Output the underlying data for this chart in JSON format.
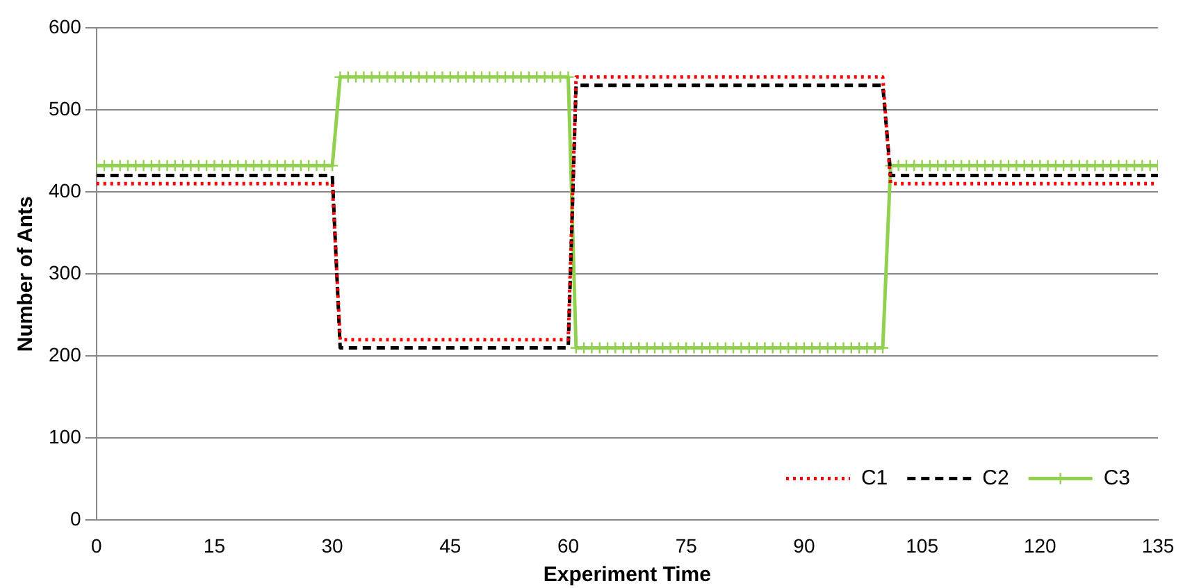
{
  "chart_data": {
    "type": "line",
    "xlabel": "Experiment Time",
    "ylabel": "Number of Ants",
    "x": [
      0,
      1,
      2,
      3,
      4,
      5,
      6,
      7,
      8,
      9,
      10,
      11,
      12,
      13,
      14,
      15,
      16,
      17,
      18,
      19,
      20,
      21,
      22,
      23,
      24,
      25,
      26,
      27,
      28,
      29,
      30,
      31,
      32,
      33,
      34,
      35,
      36,
      37,
      38,
      39,
      40,
      41,
      42,
      43,
      44,
      45,
      46,
      47,
      48,
      49,
      50,
      51,
      52,
      53,
      54,
      55,
      56,
      57,
      58,
      59,
      60,
      61,
      62,
      63,
      64,
      65,
      66,
      67,
      68,
      69,
      70,
      71,
      72,
      73,
      74,
      75,
      76,
      77,
      78,
      79,
      80,
      81,
      82,
      83,
      84,
      85,
      86,
      87,
      88,
      89,
      90,
      91,
      92,
      93,
      94,
      95,
      96,
      97,
      98,
      99,
      100,
      101,
      102,
      103,
      104,
      105,
      106,
      107,
      108,
      109,
      110,
      111,
      112,
      113,
      114,
      115,
      116,
      117,
      118,
      119,
      120,
      121,
      122,
      123,
      124,
      125,
      126,
      127,
      128,
      129,
      130,
      131,
      132,
      133,
      134,
      135
    ],
    "series": [
      {
        "name": "C1",
        "color": "#ff0000",
        "line_style": "dotted",
        "marker": "none",
        "values": [
          410,
          410,
          410,
          410,
          410,
          410,
          410,
          410,
          410,
          410,
          410,
          410,
          410,
          410,
          410,
          410,
          410,
          410,
          410,
          410,
          410,
          410,
          410,
          410,
          410,
          410,
          410,
          410,
          410,
          410,
          410,
          220,
          220,
          220,
          220,
          220,
          220,
          220,
          220,
          220,
          220,
          220,
          220,
          220,
          220,
          220,
          220,
          220,
          220,
          220,
          220,
          220,
          220,
          220,
          220,
          220,
          220,
          220,
          220,
          220,
          220,
          540,
          540,
          540,
          540,
          540,
          540,
          540,
          540,
          540,
          540,
          540,
          540,
          540,
          540,
          540,
          540,
          540,
          540,
          540,
          540,
          540,
          540,
          540,
          540,
          540,
          540,
          540,
          540,
          540,
          540,
          540,
          540,
          540,
          540,
          540,
          540,
          540,
          540,
          540,
          540,
          410,
          410,
          410,
          410,
          410,
          410,
          410,
          410,
          410,
          410,
          410,
          410,
          410,
          410,
          410,
          410,
          410,
          410,
          410,
          410,
          410,
          410,
          410,
          410,
          410,
          410,
          410,
          410,
          410,
          410,
          410,
          410,
          410,
          410,
          410
        ]
      },
      {
        "name": "C2",
        "color": "#000000",
        "line_style": "dashed",
        "marker": "none",
        "values": [
          420,
          420,
          420,
          420,
          420,
          420,
          420,
          420,
          420,
          420,
          420,
          420,
          420,
          420,
          420,
          420,
          420,
          420,
          420,
          420,
          420,
          420,
          420,
          420,
          420,
          420,
          420,
          420,
          420,
          420,
          420,
          210,
          210,
          210,
          210,
          210,
          210,
          210,
          210,
          210,
          210,
          210,
          210,
          210,
          210,
          210,
          210,
          210,
          210,
          210,
          210,
          210,
          210,
          210,
          210,
          210,
          210,
          210,
          210,
          210,
          210,
          530,
          530,
          530,
          530,
          530,
          530,
          530,
          530,
          530,
          530,
          530,
          530,
          530,
          530,
          530,
          530,
          530,
          530,
          530,
          530,
          530,
          530,
          530,
          530,
          530,
          530,
          530,
          530,
          530,
          530,
          530,
          530,
          530,
          530,
          530,
          530,
          530,
          530,
          530,
          530,
          420,
          420,
          420,
          420,
          420,
          420,
          420,
          420,
          420,
          420,
          420,
          420,
          420,
          420,
          420,
          420,
          420,
          420,
          420,
          420,
          420,
          420,
          420,
          420,
          420,
          420,
          420,
          420,
          420,
          420,
          420,
          420,
          420,
          420,
          420
        ]
      },
      {
        "name": "C3",
        "color": "#92d050",
        "line_style": "solid",
        "marker": "cross",
        "values": [
          432,
          432,
          432,
          432,
          432,
          432,
          432,
          432,
          432,
          432,
          432,
          432,
          432,
          432,
          432,
          432,
          432,
          432,
          432,
          432,
          432,
          432,
          432,
          432,
          432,
          432,
          432,
          432,
          432,
          432,
          432,
          540,
          540,
          540,
          540,
          540,
          540,
          540,
          540,
          540,
          540,
          540,
          540,
          540,
          540,
          540,
          540,
          540,
          540,
          540,
          540,
          540,
          540,
          540,
          540,
          540,
          540,
          540,
          540,
          540,
          540,
          210,
          210,
          210,
          210,
          210,
          210,
          210,
          210,
          210,
          210,
          210,
          210,
          210,
          210,
          210,
          210,
          210,
          210,
          210,
          210,
          210,
          210,
          210,
          210,
          210,
          210,
          210,
          210,
          210,
          210,
          210,
          210,
          210,
          210,
          210,
          210,
          210,
          210,
          210,
          210,
          432,
          432,
          432,
          432,
          432,
          432,
          432,
          432,
          432,
          432,
          432,
          432,
          432,
          432,
          432,
          432,
          432,
          432,
          432,
          432,
          432,
          432,
          432,
          432,
          432,
          432,
          432,
          432,
          432,
          432,
          432,
          432,
          432,
          432,
          432
        ]
      }
    ],
    "xlim": [
      0,
      135
    ],
    "xticks": [
      0,
      15,
      30,
      45,
      60,
      75,
      90,
      105,
      120,
      135
    ],
    "ylim": [
      0,
      600
    ],
    "yticks": [
      0,
      100,
      200,
      300,
      400,
      500,
      600
    ],
    "grid": "y",
    "legend": "bottom right"
  }
}
